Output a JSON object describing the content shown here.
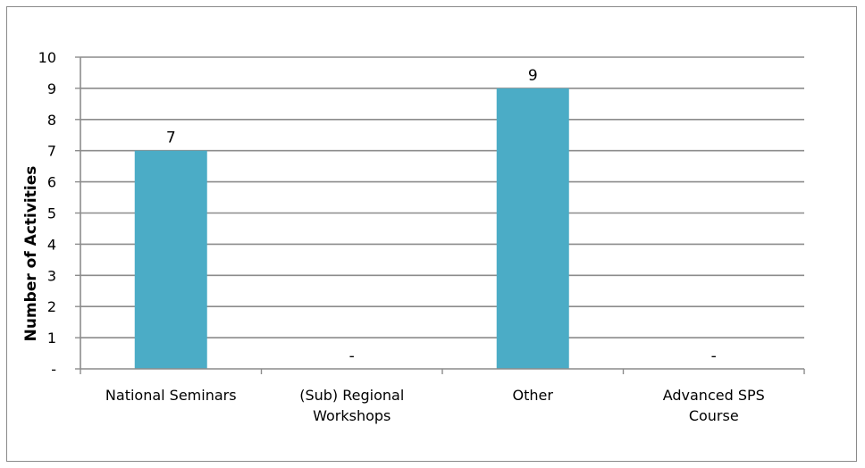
{
  "chart_data": {
    "type": "bar",
    "categories": [
      [
        "National Seminars"
      ],
      [
        "(Sub) Regional",
        "Workshops"
      ],
      [
        "Other"
      ],
      [
        "Advanced SPS",
        "Course"
      ]
    ],
    "values": [
      7,
      0,
      9,
      0
    ],
    "data_labels": [
      "7",
      "-",
      "9",
      "-"
    ],
    "title": "",
    "xlabel": "",
    "ylabel": "Number of Activities",
    "ylim": [
      0,
      10
    ],
    "yticks": [
      "-",
      "1",
      "2",
      "3",
      "4",
      "5",
      "6",
      "7",
      "8",
      "9",
      "10"
    ],
    "grid": true,
    "legend": "none",
    "colors": {
      "bar": "#4BACC6",
      "grid": "#8c8c8c",
      "axis": "#8c8c8c",
      "frame": "#8a8a8a"
    }
  }
}
